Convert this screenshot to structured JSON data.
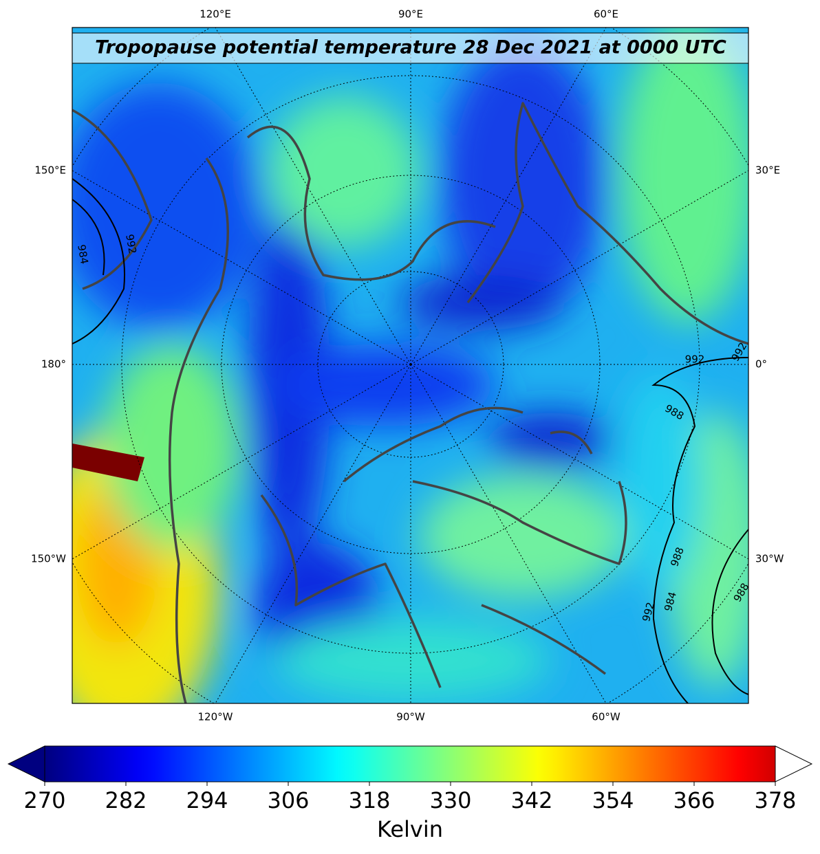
{
  "title": "Tropopause potential temperature 28 Dec 2021 at 0000 UTC",
  "longitude_labels": {
    "top": [
      "120°E",
      "90°E",
      "60°E"
    ],
    "left": [
      "150°E",
      "180°",
      "150°W"
    ],
    "right": [
      "30°E",
      "0°",
      "30°W"
    ],
    "bottom": [
      "120°W",
      "90°W",
      "60°W"
    ]
  },
  "contour_labels": [
    "984",
    "992",
    "992",
    "988",
    "992",
    "988",
    "992",
    "984",
    "988"
  ],
  "colorbar": {
    "label": "Kelvin",
    "colormap": "jet",
    "extend": "both",
    "range": [
      270,
      378
    ],
    "ticks": [
      270,
      282,
      294,
      306,
      318,
      330,
      342,
      354,
      366,
      378
    ]
  }
}
